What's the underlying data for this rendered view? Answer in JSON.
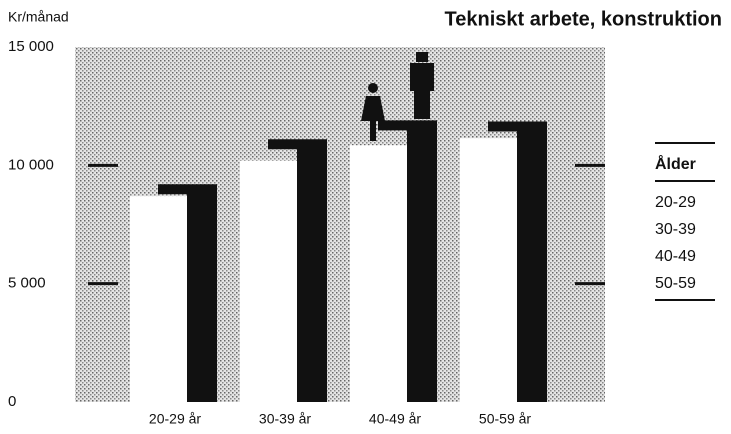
{
  "chart_data": {
    "type": "bar",
    "title": "Tekniskt arbete, konstruktion",
    "y_label": "Kr/månad",
    "categories": [
      "20-29 år",
      "30-39 år",
      "40-49 år",
      "50-59 år"
    ],
    "series": [
      {
        "color": "#ffffff",
        "values": [
          8700,
          10200,
          10850,
          11150
        ]
      },
      {
        "color": "#111111",
        "values": [
          9200,
          11100,
          11900,
          11850
        ]
      }
    ],
    "ylim": [
      0,
      15000
    ],
    "yticks": [
      0,
      {
        "value": 5000,
        "label": "5 000"
      },
      {
        "value": 10000,
        "label": "10 000"
      },
      {
        "value": 15000,
        "label": "15 000"
      }
    ],
    "grid": false
  },
  "age_table": {
    "header": "Ålder",
    "rows": [
      "20-29",
      "30-39",
      "40-49",
      "50-59"
    ]
  }
}
